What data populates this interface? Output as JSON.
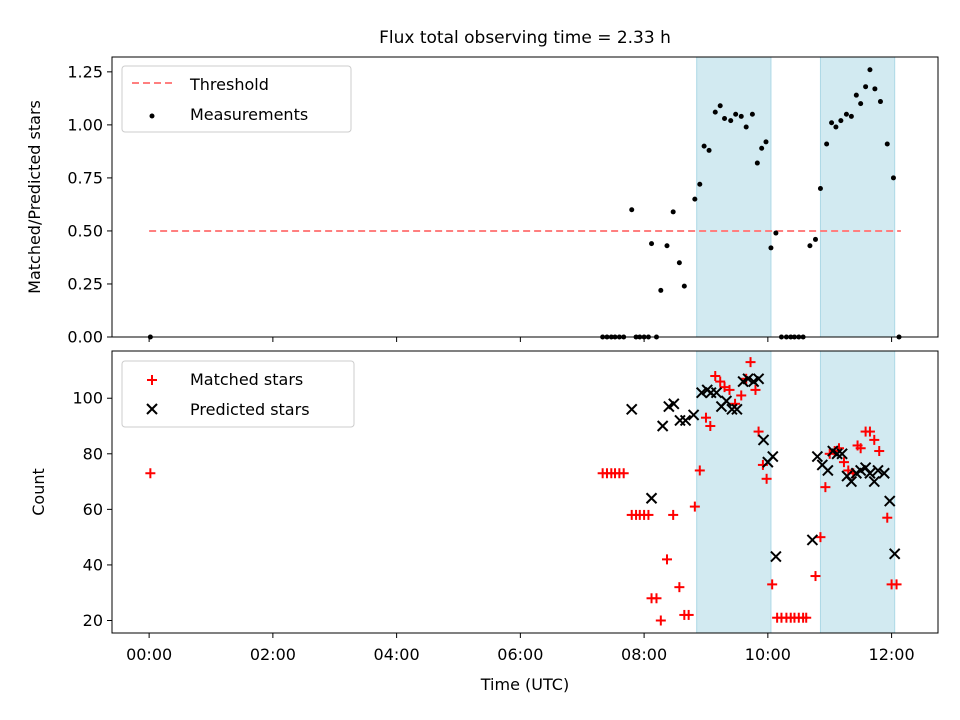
{
  "chart_data": [
    {
      "type": "scatter",
      "title": "Flux total observing time = 2.33 h",
      "xlabel": "",
      "ylabel": "Matched/Predicted stars",
      "xlim_hours": [
        -0.6,
        12.75
      ],
      "ylim": [
        0,
        1.32
      ],
      "y_ticks": [
        0.0,
        0.25,
        0.5,
        0.75,
        1.0,
        1.25
      ],
      "y_tick_labels": [
        "0.00",
        "0.25",
        "0.50",
        "0.75",
        "1.00",
        "1.25"
      ],
      "shaded_intervals_hours": [
        [
          8.85,
          10.05
        ],
        [
          10.85,
          12.05
        ]
      ],
      "shade_color": "#add8e6",
      "legend": {
        "placement": "upper left",
        "entries": [
          "Threshold",
          "Measurements"
        ]
      },
      "threshold": {
        "name": "Threshold",
        "y": 0.5,
        "x_range_hours": [
          0.0,
          12.15
        ],
        "color": "#ff7f7f",
        "style": "dashed"
      },
      "series": [
        {
          "name": "Measurements",
          "marker": "dot",
          "color": "#000000",
          "points": [
            [
              0.02,
              0.0
            ],
            [
              7.33,
              0.0
            ],
            [
              7.4,
              0.0
            ],
            [
              7.47,
              0.0
            ],
            [
              7.53,
              0.0
            ],
            [
              7.6,
              0.0
            ],
            [
              7.67,
              0.0
            ],
            [
              7.8,
              0.6
            ],
            [
              7.87,
              0.0
            ],
            [
              7.93,
              0.0
            ],
            [
              8.0,
              0.0
            ],
            [
              8.07,
              0.0
            ],
            [
              8.12,
              0.44
            ],
            [
              8.2,
              0.0
            ],
            [
              8.27,
              0.22
            ],
            [
              8.37,
              0.43
            ],
            [
              8.47,
              0.59
            ],
            [
              8.57,
              0.35
            ],
            [
              8.65,
              0.24
            ],
            [
              8.82,
              0.65
            ],
            [
              8.9,
              0.72
            ],
            [
              8.97,
              0.9
            ],
            [
              9.05,
              0.88
            ],
            [
              9.15,
              1.06
            ],
            [
              9.23,
              1.09
            ],
            [
              9.3,
              1.03
            ],
            [
              9.4,
              1.02
            ],
            [
              9.48,
              1.05
            ],
            [
              9.57,
              1.04
            ],
            [
              9.65,
              0.99
            ],
            [
              9.75,
              1.05
            ],
            [
              9.83,
              0.82
            ],
            [
              9.9,
              0.89
            ],
            [
              9.97,
              0.92
            ],
            [
              10.05,
              0.42
            ],
            [
              10.13,
              0.49
            ],
            [
              10.22,
              0.0
            ],
            [
              10.3,
              0.0
            ],
            [
              10.37,
              0.0
            ],
            [
              10.43,
              0.0
            ],
            [
              10.5,
              0.0
            ],
            [
              10.57,
              0.0
            ],
            [
              10.68,
              0.43
            ],
            [
              10.77,
              0.46
            ],
            [
              10.85,
              0.7
            ],
            [
              10.95,
              0.91
            ],
            [
              11.03,
              1.01
            ],
            [
              11.1,
              0.99
            ],
            [
              11.18,
              1.02
            ],
            [
              11.27,
              1.05
            ],
            [
              11.35,
              1.04
            ],
            [
              11.43,
              1.14
            ],
            [
              11.5,
              1.1
            ],
            [
              11.58,
              1.18
            ],
            [
              11.65,
              1.26
            ],
            [
              11.73,
              1.17
            ],
            [
              11.82,
              1.11
            ],
            [
              11.93,
              0.91
            ],
            [
              12.03,
              0.75
            ],
            [
              12.12,
              0.0
            ]
          ]
        }
      ]
    },
    {
      "type": "scatter",
      "title": "",
      "xlabel": "Time (UTC)",
      "ylabel": "Count",
      "xlim_hours": [
        -0.6,
        12.75
      ],
      "ylim": [
        15.5,
        117
      ],
      "y_ticks": [
        20,
        40,
        60,
        80,
        100
      ],
      "y_tick_labels": [
        "20",
        "40",
        "60",
        "80",
        "100"
      ],
      "x_ticks_hours": [
        0,
        2,
        4,
        6,
        8,
        10,
        12
      ],
      "x_tick_labels": [
        "00:00",
        "02:00",
        "04:00",
        "06:00",
        "08:00",
        "10:00",
        "12:00"
      ],
      "shaded_intervals_hours": [
        [
          8.85,
          10.05
        ],
        [
          10.85,
          12.05
        ]
      ],
      "shade_color": "#add8e6",
      "legend": {
        "placement": "upper left",
        "entries": [
          "Matched stars",
          "Predicted stars"
        ]
      },
      "series": [
        {
          "name": "Matched stars",
          "marker": "plus",
          "color": "#ff0000",
          "points": [
            [
              0.02,
              73
            ],
            [
              7.33,
              73
            ],
            [
              7.4,
              73
            ],
            [
              7.47,
              73
            ],
            [
              7.53,
              73
            ],
            [
              7.6,
              73
            ],
            [
              7.67,
              73
            ],
            [
              7.8,
              58
            ],
            [
              7.87,
              58
            ],
            [
              7.93,
              58
            ],
            [
              8.0,
              58
            ],
            [
              8.07,
              58
            ],
            [
              8.12,
              28
            ],
            [
              8.2,
              28
            ],
            [
              8.27,
              20
            ],
            [
              8.37,
              42
            ],
            [
              8.47,
              58
            ],
            [
              8.57,
              32
            ],
            [
              8.65,
              22
            ],
            [
              8.72,
              22
            ],
            [
              8.82,
              61
            ],
            [
              8.9,
              74
            ],
            [
              9.0,
              93
            ],
            [
              9.07,
              90
            ],
            [
              9.15,
              108
            ],
            [
              9.23,
              106
            ],
            [
              9.3,
              104
            ],
            [
              9.38,
              103
            ],
            [
              9.47,
              98
            ],
            [
              9.57,
              101
            ],
            [
              9.65,
              107
            ],
            [
              9.72,
              113
            ],
            [
              9.8,
              103
            ],
            [
              9.85,
              88
            ],
            [
              9.92,
              76
            ],
            [
              9.98,
              71
            ],
            [
              10.07,
              33
            ],
            [
              10.15,
              21
            ],
            [
              10.22,
              21
            ],
            [
              10.3,
              21
            ],
            [
              10.37,
              21
            ],
            [
              10.43,
              21
            ],
            [
              10.5,
              21
            ],
            [
              10.57,
              21
            ],
            [
              10.62,
              21
            ],
            [
              10.77,
              36
            ],
            [
              10.85,
              50
            ],
            [
              10.93,
              68
            ],
            [
              11.0,
              80
            ],
            [
              11.08,
              81
            ],
            [
              11.15,
              82
            ],
            [
              11.23,
              77
            ],
            [
              11.3,
              74
            ],
            [
              11.38,
              73
            ],
            [
              11.45,
              83
            ],
            [
              11.5,
              82
            ],
            [
              11.58,
              88
            ],
            [
              11.65,
              88
            ],
            [
              11.72,
              85
            ],
            [
              11.8,
              81
            ],
            [
              11.93,
              57
            ],
            [
              12.0,
              33
            ],
            [
              12.08,
              33
            ]
          ]
        },
        {
          "name": "Predicted stars",
          "marker": "x",
          "color": "#000000",
          "points": [
            [
              7.8,
              96
            ],
            [
              8.12,
              64
            ],
            [
              8.3,
              90
            ],
            [
              8.4,
              97
            ],
            [
              8.48,
              98
            ],
            [
              8.58,
              92
            ],
            [
              8.67,
              92
            ],
            [
              8.8,
              94
            ],
            [
              8.93,
              102
            ],
            [
              9.02,
              103
            ],
            [
              9.08,
              102
            ],
            [
              9.17,
              102
            ],
            [
              9.25,
              97
            ],
            [
              9.33,
              99
            ],
            [
              9.42,
              96
            ],
            [
              9.5,
              96
            ],
            [
              9.6,
              106
            ],
            [
              9.68,
              107
            ],
            [
              9.77,
              106
            ],
            [
              9.85,
              107
            ],
            [
              9.93,
              85
            ],
            [
              10.0,
              77
            ],
            [
              10.08,
              79
            ],
            [
              10.13,
              43
            ],
            [
              10.72,
              49
            ],
            [
              10.8,
              79
            ],
            [
              10.88,
              76
            ],
            [
              10.97,
              74
            ],
            [
              11.05,
              81
            ],
            [
              11.12,
              80
            ],
            [
              11.2,
              80
            ],
            [
              11.28,
              72
            ],
            [
              11.35,
              70
            ],
            [
              11.43,
              73
            ],
            [
              11.5,
              74
            ],
            [
              11.58,
              75
            ],
            [
              11.65,
              73
            ],
            [
              11.72,
              70
            ],
            [
              11.78,
              74
            ],
            [
              11.88,
              73
            ],
            [
              11.97,
              63
            ],
            [
              12.05,
              44
            ]
          ]
        }
      ]
    }
  ]
}
